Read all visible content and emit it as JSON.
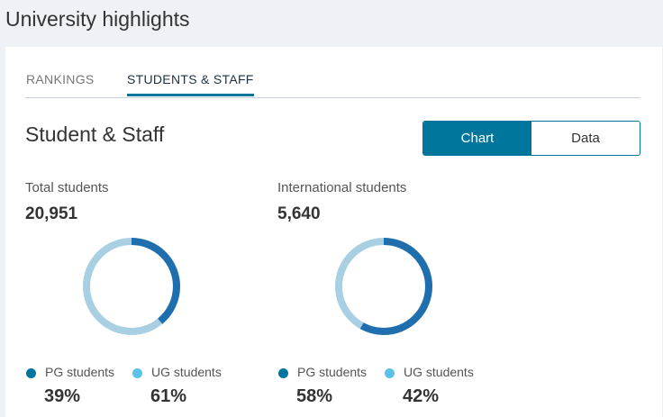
{
  "page": {
    "title": "University highlights"
  },
  "tabs": [
    {
      "label": "RANKINGS",
      "active": false
    },
    {
      "label": "STUDENTS & STAFF",
      "active": true
    }
  ],
  "section": {
    "title": "Student & Staff",
    "toggle": {
      "chart_label": "Chart",
      "data_label": "Data",
      "selected": "Chart"
    }
  },
  "colors": {
    "accent": "#00769d",
    "pg": "#1f6fae",
    "ug": "#a8d0e2",
    "pg_dot": "#00769d",
    "ug_dot": "#5bc2e7"
  },
  "panels": [
    {
      "label": "Total students",
      "value": "20,951",
      "pg_label": "PG students",
      "pg_pct": "39%",
      "pg_fraction": 0.39,
      "ug_label": "UG students",
      "ug_pct": "61%",
      "ug_fraction": 0.61
    },
    {
      "label": "International students",
      "value": "5,640",
      "pg_label": "PG students",
      "pg_pct": "58%",
      "pg_fraction": 0.58,
      "ug_label": "UG students",
      "ug_pct": "42%",
      "ug_fraction": 0.42
    }
  ]
}
